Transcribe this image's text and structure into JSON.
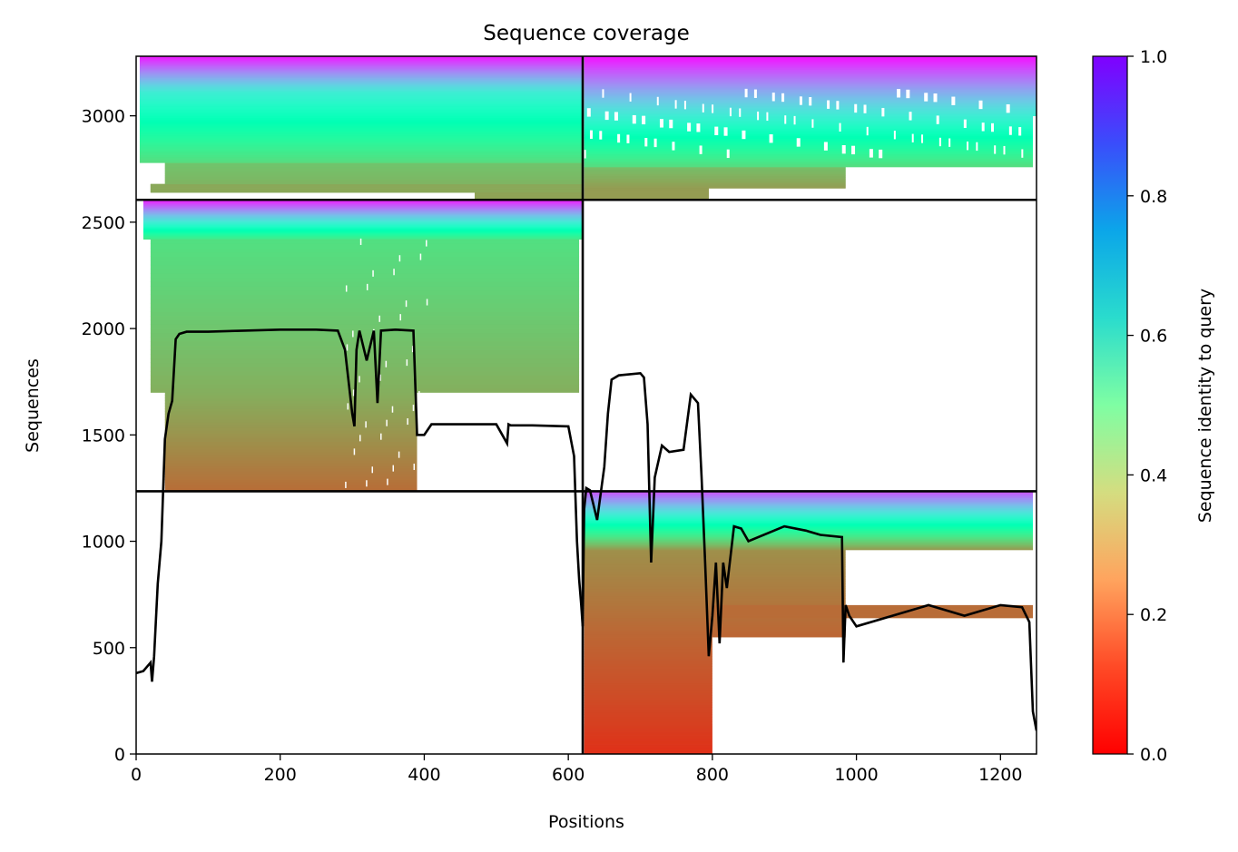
{
  "chart_data": {
    "type": "heatmap",
    "title": "Sequence coverage",
    "xlabel": "Positions",
    "ylabel": "Sequences",
    "xlim": [
      0,
      1250
    ],
    "ylim": [
      0,
      3280
    ],
    "x_ticks": [
      0,
      200,
      400,
      600,
      800,
      1000,
      1200
    ],
    "y_ticks": [
      0,
      500,
      1000,
      1500,
      2000,
      2500,
      3000
    ],
    "colorbar": {
      "label": "Sequence identity to query",
      "range": [
        0.0,
        1.0
      ],
      "ticks": [
        "0.0",
        "0.2",
        "0.4",
        "0.6",
        "0.8",
        "1.0"
      ],
      "colormap": "rainbow_r"
    },
    "block_boundaries": {
      "x": [
        620
      ],
      "y": [
        1235,
        2605
      ]
    },
    "coverage_line": {
      "x": [
        0,
        10,
        20,
        22,
        25,
        30,
        35,
        40,
        45,
        50,
        55,
        60,
        70,
        100,
        150,
        200,
        250,
        280,
        290,
        300,
        303,
        306,
        310,
        320,
        330,
        335,
        340,
        360,
        385,
        390,
        400,
        410,
        420,
        450,
        500,
        515,
        517,
        520,
        550,
        600,
        608,
        612,
        615,
        618,
        620,
        622,
        625,
        630,
        640,
        650,
        655,
        660,
        670,
        700,
        705,
        710,
        715,
        720,
        730,
        740,
        760,
        770,
        780,
        785,
        790,
        795,
        800,
        805,
        810,
        815,
        820,
        830,
        840,
        850,
        900,
        930,
        950,
        980,
        982,
        985,
        990,
        1000,
        1050,
        1100,
        1150,
        1200,
        1230,
        1240,
        1245,
        1250
      ],
      "y": [
        380,
        390,
        430,
        340,
        460,
        800,
        1000,
        1480,
        1600,
        1660,
        1950,
        1975,
        1985,
        1985,
        1990,
        1995,
        1995,
        1990,
        1900,
        1600,
        1540,
        1900,
        1990,
        1850,
        1990,
        1650,
        1990,
        1995,
        1990,
        1500,
        1500,
        1550,
        1550,
        1550,
        1550,
        1460,
        1550,
        1545,
        1545,
        1540,
        1400,
        1000,
        820,
        700,
        600,
        1150,
        1250,
        1240,
        1100,
        1350,
        1600,
        1760,
        1780,
        1790,
        1770,
        1550,
        900,
        1300,
        1450,
        1420,
        1430,
        1690,
        1650,
        1300,
        900,
        460,
        650,
        900,
        520,
        900,
        780,
        1070,
        1060,
        1000,
        1070,
        1050,
        1030,
        1020,
        430,
        700,
        650,
        600,
        650,
        700,
        650,
        700,
        690,
        620,
        200,
        110
      ]
    }
  }
}
